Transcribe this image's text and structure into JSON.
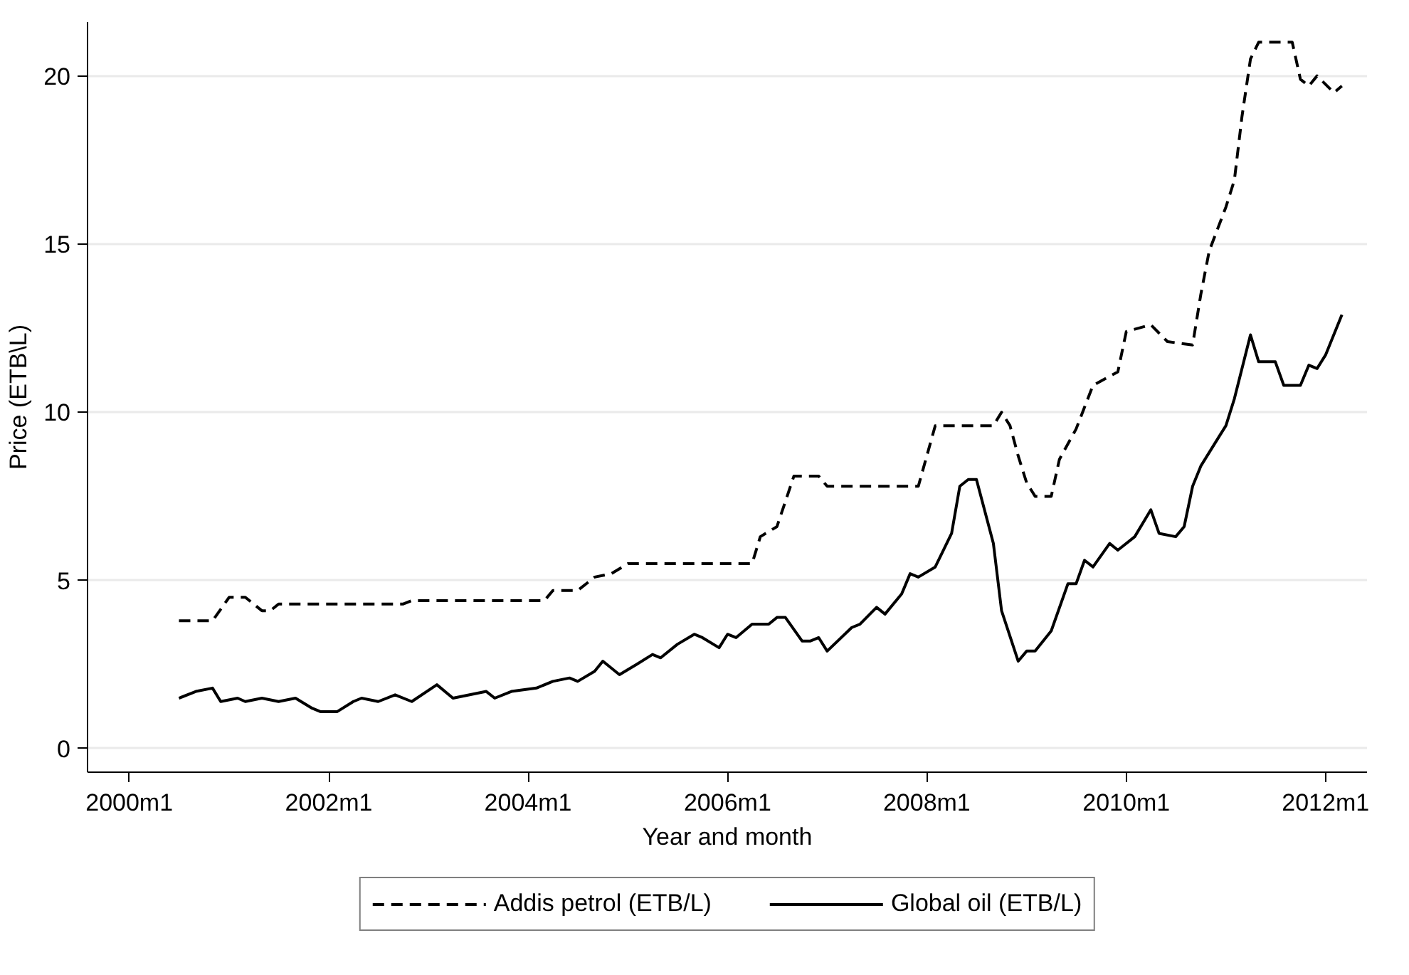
{
  "chart_data": {
    "type": "line",
    "xlabel": "Year and month",
    "ylabel": "Price (ETB\\L)",
    "xlim": [
      "1999-08",
      "2012-06"
    ],
    "ylim": [
      -0.7,
      21.6
    ],
    "xticks": [
      {
        "value": "2000-01",
        "label": "2000m1"
      },
      {
        "value": "2002-01",
        "label": "2002m1"
      },
      {
        "value": "2004-01",
        "label": "2004m1"
      },
      {
        "value": "2006-01",
        "label": "2006m1"
      },
      {
        "value": "2008-01",
        "label": "2008m1"
      },
      {
        "value": "2010-01",
        "label": "2010m1"
      },
      {
        "value": "2012-01",
        "label": "2012m1"
      }
    ],
    "yticks": [
      0,
      5,
      10,
      15,
      20
    ],
    "grid": "y",
    "legend": "bottom",
    "marker": "none",
    "series": [
      {
        "name": "Addis petrol (ETB/L)",
        "color": "#000000",
        "line_style": "dashed",
        "x": [
          "2000-07",
          "2000-11",
          "2001-01",
          "2001-03",
          "2001-05",
          "2001-06",
          "2001-07",
          "2002-10",
          "2002-11",
          "2004-03",
          "2004-04",
          "2004-07",
          "2004-09",
          "2004-11",
          "2005-01",
          "2006-04",
          "2006-05",
          "2006-07",
          "2006-09",
          "2006-12",
          "2007-01",
          "2007-12",
          "2008-02",
          "2008-09",
          "2008-10",
          "2008-11",
          "2008-12",
          "2009-01",
          "2009-02",
          "2009-04",
          "2009-05",
          "2009-07",
          "2009-09",
          "2009-12",
          "2010-01",
          "2010-04",
          "2010-06",
          "2010-09",
          "2010-10",
          "2010-11",
          "2011-01",
          "2011-02",
          "2011-03",
          "2011-04",
          "2011-05",
          "2011-09",
          "2011-10",
          "2011-11",
          "2011-12",
          "2012-02",
          "2012-03"
        ],
        "values": [
          3.8,
          3.8,
          4.5,
          4.5,
          4.1,
          4.1,
          4.3,
          4.3,
          4.4,
          4.4,
          4.7,
          4.7,
          5.1,
          5.2,
          5.5,
          5.5,
          6.3,
          6.6,
          8.1,
          8.1,
          7.8,
          7.8,
          9.6,
          9.6,
          10.0,
          9.6,
          8.7,
          7.9,
          7.5,
          7.5,
          8.6,
          9.5,
          10.8,
          11.2,
          12.4,
          12.6,
          12.1,
          12.0,
          13.5,
          14.8,
          16.1,
          16.9,
          18.8,
          20.5,
          21.0,
          21.0,
          19.9,
          19.7,
          20.0,
          19.5,
          19.7
        ]
      },
      {
        "name": "Global oil (ETB/L)",
        "color": "#000000",
        "line_style": "solid",
        "x": [
          "2000-07",
          "2000-09",
          "2000-11",
          "2000-12",
          "2001-02",
          "2001-03",
          "2001-05",
          "2001-07",
          "2001-09",
          "2001-11",
          "2001-12",
          "2002-02",
          "2002-04",
          "2002-05",
          "2002-07",
          "2002-09",
          "2002-11",
          "2003-02",
          "2003-04",
          "2003-08",
          "2003-09",
          "2003-11",
          "2004-02",
          "2004-04",
          "2004-06",
          "2004-07",
          "2004-09",
          "2004-10",
          "2004-12",
          "2005-02",
          "2005-04",
          "2005-05",
          "2005-07",
          "2005-09",
          "2005-10",
          "2005-12",
          "2006-01",
          "2006-02",
          "2006-04",
          "2006-06",
          "2006-07",
          "2006-08",
          "2006-10",
          "2006-11",
          "2006-12",
          "2007-01",
          "2007-04",
          "2007-05",
          "2007-07",
          "2007-08",
          "2007-10",
          "2007-11",
          "2007-12",
          "2008-02",
          "2008-04",
          "2008-05",
          "2008-06",
          "2008-07",
          "2008-09",
          "2008-10",
          "2008-12",
          "2009-01",
          "2009-02",
          "2009-04",
          "2009-06",
          "2009-07",
          "2009-08",
          "2009-09",
          "2009-11",
          "2009-12",
          "2010-02",
          "2010-04",
          "2010-05",
          "2010-07",
          "2010-08",
          "2010-09",
          "2010-10",
          "2010-12",
          "2011-01",
          "2011-02",
          "2011-04",
          "2011-05",
          "2011-07",
          "2011-08",
          "2011-10",
          "2011-11",
          "2011-12",
          "2012-01",
          "2012-03"
        ],
        "values": [
          1.5,
          1.7,
          1.8,
          1.4,
          1.5,
          1.4,
          1.5,
          1.4,
          1.5,
          1.2,
          1.1,
          1.1,
          1.4,
          1.5,
          1.4,
          1.6,
          1.4,
          1.9,
          1.5,
          1.7,
          1.5,
          1.7,
          1.8,
          2.0,
          2.1,
          2.0,
          2.3,
          2.6,
          2.2,
          2.5,
          2.8,
          2.7,
          3.1,
          3.4,
          3.3,
          3.0,
          3.4,
          3.3,
          3.7,
          3.7,
          3.9,
          3.9,
          3.2,
          3.2,
          3.3,
          2.9,
          3.6,
          3.7,
          4.2,
          4.0,
          4.6,
          5.2,
          5.1,
          5.4,
          6.4,
          7.8,
          8.0,
          8.0,
          6.1,
          4.1,
          2.6,
          2.9,
          2.9,
          3.5,
          4.9,
          4.9,
          5.6,
          5.4,
          6.1,
          5.9,
          6.3,
          7.1,
          6.4,
          6.3,
          6.6,
          7.8,
          8.4,
          9.2,
          9.6,
          10.4,
          12.3,
          11.5,
          11.5,
          10.8,
          10.8,
          11.4,
          11.3,
          11.7,
          12.9
        ]
      }
    ]
  }
}
